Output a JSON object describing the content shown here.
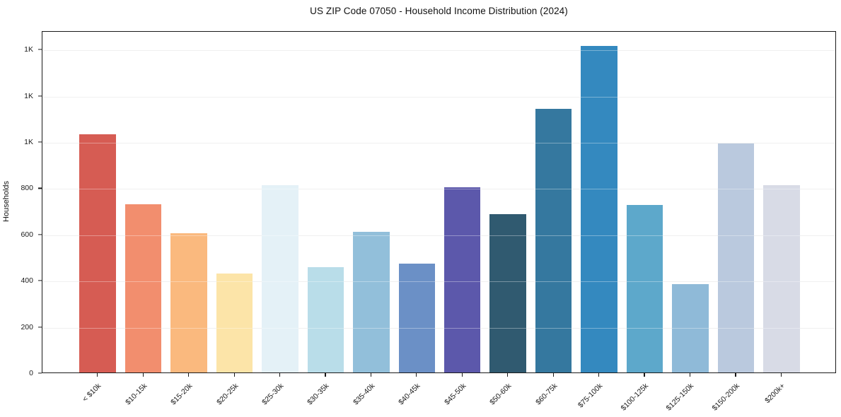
{
  "chart_data": {
    "type": "bar",
    "title": "US ZIP Code 07050 - Household Income Distribution (2024)",
    "xlabel": "",
    "ylabel": "Households",
    "categories": [
      "< $10k",
      "$10-15k",
      "$15-20k",
      "$20-25k",
      "$25-30k",
      "$30-35k",
      "$35-40k",
      "$40-45k",
      "$45-50k",
      "$50-60k",
      "$60-75k",
      "$75-100k",
      "$100-125k",
      "$125-150k",
      "$150-200k",
      "$200k+"
    ],
    "values": [
      1032,
      728,
      602,
      428,
      810,
      457,
      608,
      470,
      801,
      686,
      1141,
      1413,
      725,
      381,
      991,
      810
    ],
    "bar_colors": [
      "#d65c53",
      "#f28e6e",
      "#fab97e",
      "#fce4a8",
      "#e4f1f7",
      "#b9dde9",
      "#92bfda",
      "#6b90c6",
      "#5c58ab",
      "#305a70",
      "#35789f",
      "#3489bf",
      "#5da8cb",
      "#8fbad8",
      "#bac9de",
      "#d8dbe6"
    ],
    "ylim": [
      0,
      1480
    ],
    "yticks": [
      {
        "value": 0,
        "label": "0"
      },
      {
        "value": 200,
        "label": "200"
      },
      {
        "value": 400,
        "label": "400"
      },
      {
        "value": 600,
        "label": "600"
      },
      {
        "value": 800,
        "label": "800"
      },
      {
        "value": 1000,
        "label": "1K"
      },
      {
        "value": 1200,
        "label": "1K"
      },
      {
        "value": 1400,
        "label": "1K"
      }
    ],
    "grid": "horizontal",
    "legend_position": "none",
    "colors": {
      "gridline": "#e8e8e8",
      "spine": "#1a1a1a",
      "tick_text": "#1a1a1a",
      "title_text": "#111111",
      "background": "#ffffff"
    }
  }
}
